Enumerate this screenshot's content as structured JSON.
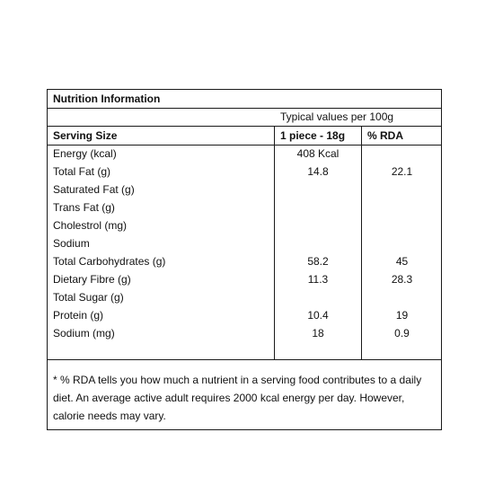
{
  "title": "Nutrition Information",
  "subheader": "Typical values per 100g",
  "columns": {
    "name": "Serving Size",
    "serving": "1 piece - 18g",
    "rda": "% RDA"
  },
  "rows": [
    {
      "name": "Energy (kcal)",
      "serving": "408 Kcal",
      "rda": ""
    },
    {
      "name": "Total Fat (g)",
      "serving": "14.8",
      "rda": "22.1"
    },
    {
      "name": "Saturated Fat (g)",
      "serving": "",
      "rda": ""
    },
    {
      "name": "Trans Fat (g)",
      "serving": "",
      "rda": ""
    },
    {
      "name": "Cholestrol (mg)",
      "serving": "",
      "rda": ""
    },
    {
      "name": "Sodium",
      "serving": "",
      "rda": ""
    },
    {
      "name": "Total Carbohydrates (g)",
      "serving": "58.2",
      "rda": "45"
    },
    {
      "name": "Dietary Fibre (g)",
      "serving": "11.3",
      "rda": "28.3"
    },
    {
      "name": "Total Sugar (g)",
      "serving": "",
      "rda": ""
    },
    {
      "name": "Protein (g)",
      "serving": "10.4",
      "rda": "19"
    },
    {
      "name": "Sodium (mg)",
      "serving": "18",
      "rda": "0.9"
    }
  ],
  "footnote": "* % RDA tells you how much a nutrient in a serving food contributes to a daily diet. An average active adult requires 2000 kcal energy per day. However, calorie needs may vary."
}
